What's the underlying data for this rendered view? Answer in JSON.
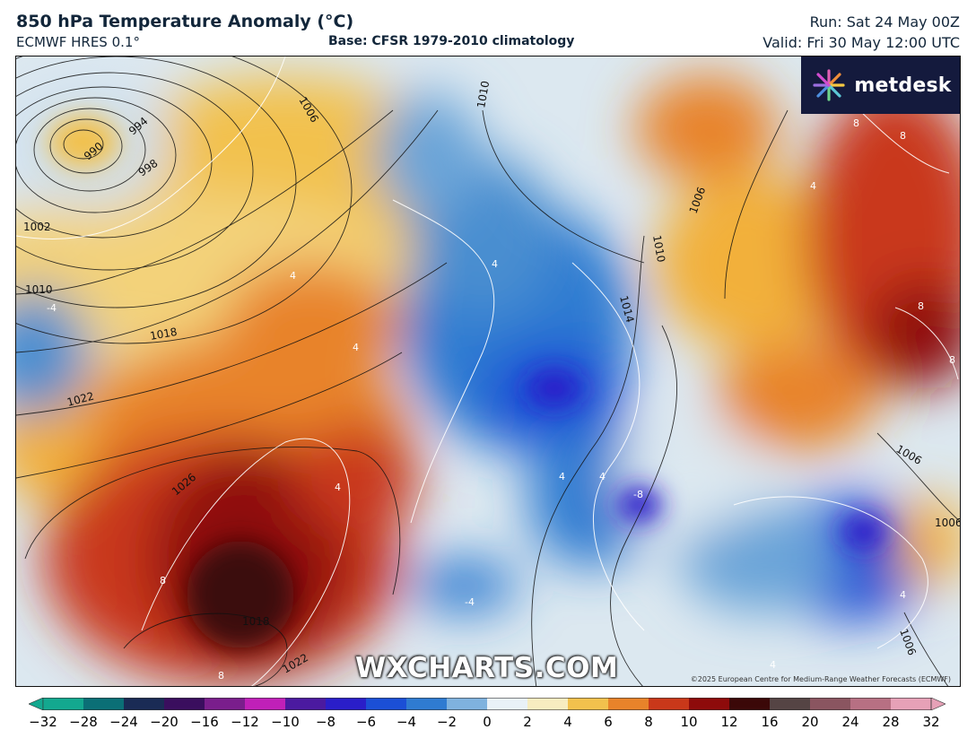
{
  "header": {
    "title": "850 hPa Temperature Anomaly (°C)",
    "model": "ECMWF HRES 0.1°",
    "base": "Base: CFSR 1979-2010 climatology",
    "run": "Run: Sat 24 May 00Z",
    "valid": "Valid: Fri 30 May 12:00 UTC"
  },
  "branding": {
    "logo_text": "metdesk",
    "watermark": "WXCHARTS.COM",
    "copyright": "©2025 European Centre for Medium-Range Weather Forecasts (ECMWF)"
  },
  "isobar_labels": [
    "990",
    "994",
    "998",
    "1002",
    "1006",
    "1010",
    "1010",
    "1014",
    "1018",
    "1022",
    "1026",
    "1018",
    "1022",
    "1006",
    "1006",
    "1010",
    "1006",
    "1006"
  ],
  "anomaly_labels": [
    "-4",
    "4",
    "4",
    "4",
    "4",
    "4",
    "8",
    "8",
    "8",
    "8",
    "8",
    "8",
    "-8",
    "-4",
    "4",
    "4",
    "4",
    "4"
  ],
  "colorbar": {
    "ticks": [
      "−32",
      "−28",
      "−24",
      "−20",
      "−16",
      "−12",
      "−10",
      "−8",
      "−6",
      "−4",
      "−2",
      "0",
      "2",
      "4",
      "6",
      "8",
      "10",
      "12",
      "16",
      "20",
      "24",
      "28",
      "32"
    ],
    "colors": [
      "#13a88f",
      "#0b6f76",
      "#1a2b55",
      "#3a0e5e",
      "#7a1e8c",
      "#c020b8",
      "#4b1aa0",
      "#2a1ec9",
      "#1b4fd6",
      "#2f7bd1",
      "#7fb2de",
      "#e9f1f7",
      "#f7ecc0",
      "#f2c14d",
      "#e8832a",
      "#c9381a",
      "#8e0b0b",
      "#3b0808",
      "#554444",
      "#8a5560",
      "#b77083",
      "#e6a1b7"
    ]
  }
}
